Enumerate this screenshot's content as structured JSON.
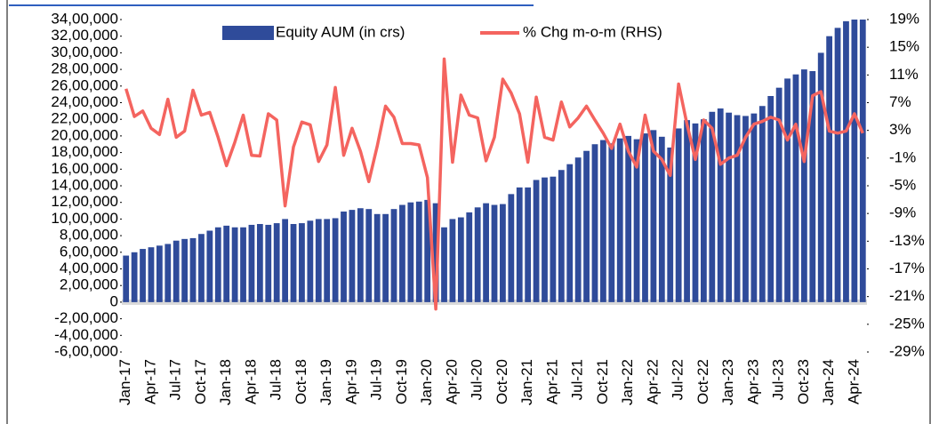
{
  "chart_data": {
    "type": "bar_line",
    "categories": [
      "Jan-17",
      null,
      null,
      "Apr-17",
      null,
      null,
      "Jul-17",
      null,
      null,
      "Oct-17",
      null,
      null,
      "Jan-18",
      null,
      null,
      "Apr-18",
      null,
      null,
      "Jul-18",
      null,
      null,
      "Oct-18",
      null,
      null,
      "Jan-19",
      null,
      null,
      "Apr-19",
      null,
      null,
      "Jul-19",
      null,
      null,
      "Oct-19",
      null,
      null,
      "Jan-20",
      null,
      null,
      "Apr-20",
      null,
      null,
      "Jul-20",
      null,
      null,
      "Oct-20",
      null,
      null,
      "Jan-21",
      null,
      null,
      "Apr-21",
      null,
      null,
      "Jul-21",
      null,
      null,
      "Oct-21",
      null,
      null,
      "Jan-22",
      null,
      null,
      "Apr-22",
      null,
      null,
      "Jul-22",
      null,
      null,
      "Oct-22",
      null,
      null,
      "Jan-23",
      null,
      null,
      "Apr-23",
      null,
      null,
      "Jul-23",
      null,
      null,
      "Oct-23",
      null,
      null,
      "Jan-24",
      null,
      null,
      "Apr-24",
      null
    ],
    "series": [
      {
        "name": "Equity AUM (in crs)",
        "color": "#2f4b9a",
        "values": [
          560000,
          600000,
          640000,
          660000,
          680000,
          700000,
          740000,
          760000,
          770000,
          820000,
          860000,
          900000,
          920000,
          900000,
          900000,
          930000,
          940000,
          930000,
          950000,
          1000000,
          940000,
          950000,
          980000,
          1000000,
          1000000,
          1010000,
          1090000,
          1110000,
          1130000,
          1120000,
          1060000,
          1060000,
          1120000,
          1170000,
          1200000,
          1210000,
          1230000,
          1190000,
          900000,
          1000000,
          1020000,
          1080000,
          1140000,
          1190000,
          1170000,
          1180000,
          1300000,
          1380000,
          1380000,
          1470000,
          1500000,
          1510000,
          1590000,
          1660000,
          1740000,
          1820000,
          1900000,
          1950000,
          1910000,
          1970000,
          2000000,
          1960000,
          2030000,
          2070000,
          1990000,
          1860000,
          2090000,
          2190000,
          2150000,
          2200000,
          2290000,
          2330000,
          2280000,
          2250000,
          2240000,
          2270000,
          2360000,
          2480000,
          2580000,
          2690000,
          2740000,
          2800000,
          2780000,
          3000000,
          3200000,
          3300000,
          3380000,
          3400000,
          3400000
        ]
      },
      {
        "name": "% Chg m-o-m (RHS)",
        "color": "#f4645f",
        "axis": "y2",
        "values": [
          9,
          5,
          5.8,
          3.3,
          2.4,
          7.5,
          2,
          2.9,
          8.8,
          5.2,
          5.6,
          2,
          -2.1,
          1.3,
          5.2,
          -0.6,
          -0.7,
          5.4,
          4.5,
          -7.9,
          0.6,
          4.2,
          3.8,
          -1.5,
          0.9,
          9.2,
          -0.6,
          3.3,
          0,
          -4.4,
          0.7,
          6.5,
          4.9,
          1.1,
          1.1,
          0.9,
          -3.8,
          -22.8,
          13.3,
          -1.6,
          8.1,
          5.2,
          4.8,
          -1.4,
          2,
          10.4,
          8.4,
          5.4,
          -1.6,
          7.8,
          2,
          1.6,
          7.1,
          3.5,
          4.8,
          6.5,
          4.5,
          2.6,
          0.4,
          3.9,
          0,
          -2.3,
          5.2,
          0,
          -1.2,
          -3.5,
          9.7,
          3.9,
          -1.2,
          4.5,
          3.3,
          -1.9,
          -1,
          -0.6,
          2,
          3.9,
          4.3,
          4.9,
          4.5,
          1.6,
          3.9,
          -1.5,
          8,
          8.6,
          2.9,
          2.6,
          2.9,
          5.4,
          2.6
        ]
      }
    ],
    "ylim": [
      -600000,
      3400000
    ],
    "yticks": [
      {
        "value": -600000,
        "label": "-6,00,000"
      },
      {
        "value": -400000,
        "label": "-4,00,000"
      },
      {
        "value": -200000,
        "label": "-2,00,000"
      },
      0,
      {
        "value": 200000,
        "label": "2,00,000"
      },
      {
        "value": 400000,
        "label": "4,00,000"
      },
      {
        "value": 600000,
        "label": "6,00,000"
      },
      {
        "value": 800000,
        "label": "8,00,000"
      },
      {
        "value": 1000000,
        "label": "10,00,000"
      },
      {
        "value": 1200000,
        "label": "12,00,000"
      },
      {
        "value": 1400000,
        "label": "14,00,000"
      },
      {
        "value": 1600000,
        "label": "16,00,000"
      },
      {
        "value": 1800000,
        "label": "18,00,000"
      },
      {
        "value": 2000000,
        "label": "20,00,000"
      },
      {
        "value": 2200000,
        "label": "22,00,000"
      },
      {
        "value": 2400000,
        "label": "24,00,000"
      },
      {
        "value": 2600000,
        "label": "26,00,000"
      },
      {
        "value": 2800000,
        "label": "28,00,000"
      },
      {
        "value": 3000000,
        "label": "30,00,000"
      },
      {
        "value": 3200000,
        "label": "32,00,000"
      },
      {
        "value": 3400000,
        "label": "34,00,000"
      }
    ],
    "y2lim": [
      -29,
      19
    ],
    "y2ticks": [
      {
        "value": -29,
        "label": "-29%"
      },
      {
        "value": -25,
        "label": "-25%"
      },
      {
        "value": -21,
        "label": "-21%"
      },
      {
        "value": -17,
        "label": "-17%"
      },
      {
        "value": -13,
        "label": "-13%"
      },
      {
        "value": -9,
        "label": "-9%"
      },
      {
        "value": -5,
        "label": "-5%"
      },
      {
        "value": -1,
        "label": "-1%"
      },
      {
        "value": 3,
        "label": "3%"
      },
      {
        "value": 7,
        "label": "7%"
      },
      {
        "value": 11,
        "label": "11%"
      },
      {
        "value": 15,
        "label": "15%"
      },
      {
        "value": 19,
        "label": "19%"
      }
    ]
  }
}
